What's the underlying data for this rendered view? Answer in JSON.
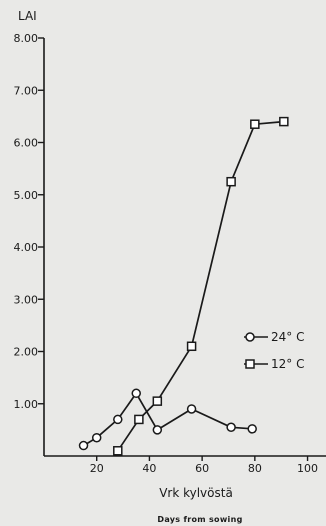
{
  "chart_data": {
    "type": "line",
    "ylabel": "LAI",
    "xlabel": "Vrk kylvöstä",
    "xlabel_sub": "Days from sowing",
    "xlim": [
      0,
      107
    ],
    "ylim": [
      0,
      8
    ],
    "x_ticks": [
      20,
      40,
      60,
      80,
      100
    ],
    "x_tick_labels": [
      "20",
      "40",
      "60",
      "80",
      "100"
    ],
    "y_ticks": [
      1,
      2,
      3,
      4,
      5,
      6,
      7,
      8
    ],
    "y_tick_labels": [
      "1.00",
      "2.00",
      "3.00",
      "4.00",
      "5.00",
      "6.00",
      "7.00",
      "8.00"
    ],
    "legend_position": "right",
    "series": [
      {
        "name": "24° C",
        "marker": "circle",
        "x": [
          15,
          20,
          28,
          35,
          43,
          56,
          71,
          79
        ],
        "y": [
          0.2,
          0.35,
          0.7,
          1.2,
          0.5,
          0.9,
          0.55,
          0.52
        ]
      },
      {
        "name": "12° C",
        "marker": "square",
        "x": [
          28,
          36,
          43,
          56,
          71,
          80,
          91
        ],
        "y": [
          0.1,
          0.7,
          1.05,
          2.1,
          5.25,
          6.35,
          6.4
        ]
      }
    ]
  }
}
